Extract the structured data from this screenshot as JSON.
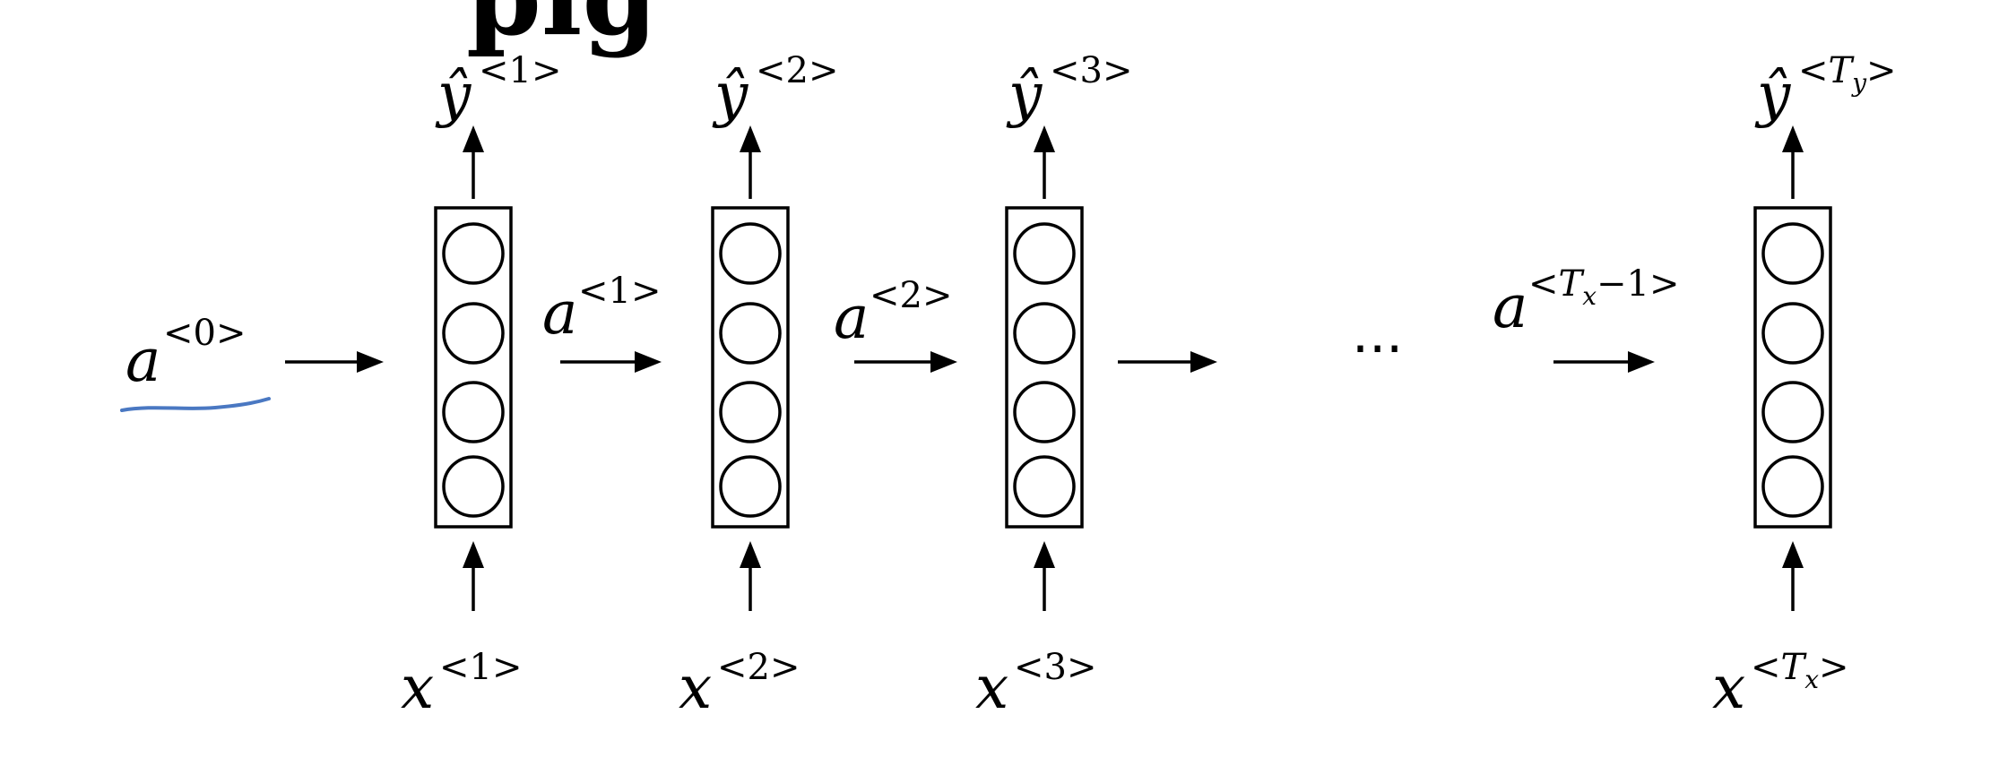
{
  "heading_fragment": "pig",
  "initial_activation": {
    "base": "a",
    "sup": "<0>"
  },
  "time_steps": [
    {
      "output": {
        "base": "ŷ",
        "sup_open": "<",
        "sup_mid": "1",
        "sup_sub": "",
        "sup_close": ">"
      },
      "input": {
        "base": "x",
        "sup_open": "<",
        "sup_mid": "1",
        "sup_sub": "",
        "sup_close": ">"
      },
      "activation_out": {
        "base": "a",
        "sup_open": "<",
        "sup_mid": "1",
        "sup_sub": "",
        "sup_tail": "",
        "sup_close": ">"
      }
    },
    {
      "output": {
        "base": "ŷ",
        "sup_open": "<",
        "sup_mid": "2",
        "sup_sub": "",
        "sup_close": ">"
      },
      "input": {
        "base": "x",
        "sup_open": "<",
        "sup_mid": "2",
        "sup_sub": "",
        "sup_close": ">"
      },
      "activation_out": {
        "base": "a",
        "sup_open": "<",
        "sup_mid": "2",
        "sup_sub": "",
        "sup_tail": "",
        "sup_close": ">"
      }
    },
    {
      "output": {
        "base": "ŷ",
        "sup_open": "<",
        "sup_mid": "3",
        "sup_sub": "",
        "sup_close": ">"
      },
      "input": {
        "base": "x",
        "sup_open": "<",
        "sup_mid": "3",
        "sup_sub": "",
        "sup_close": ">"
      }
    },
    {
      "output": {
        "base": "ŷ",
        "sup_open": "<",
        "sup_mid": "T",
        "sup_sub": "y",
        "sup_close": ">"
      },
      "input": {
        "base": "x",
        "sup_open": "<",
        "sup_mid": "T",
        "sup_sub": "x",
        "sup_close": ">"
      }
    }
  ],
  "last_activation": {
    "base": "a",
    "sup_open": "<",
    "sup_mid": "T",
    "sup_sub": "x",
    "sup_tail": "−1",
    "sup_close": ">"
  },
  "ellipsis": "···",
  "colors": {
    "ink": "#000000",
    "underline": "#4a78c2",
    "background": "#ffffff"
  }
}
